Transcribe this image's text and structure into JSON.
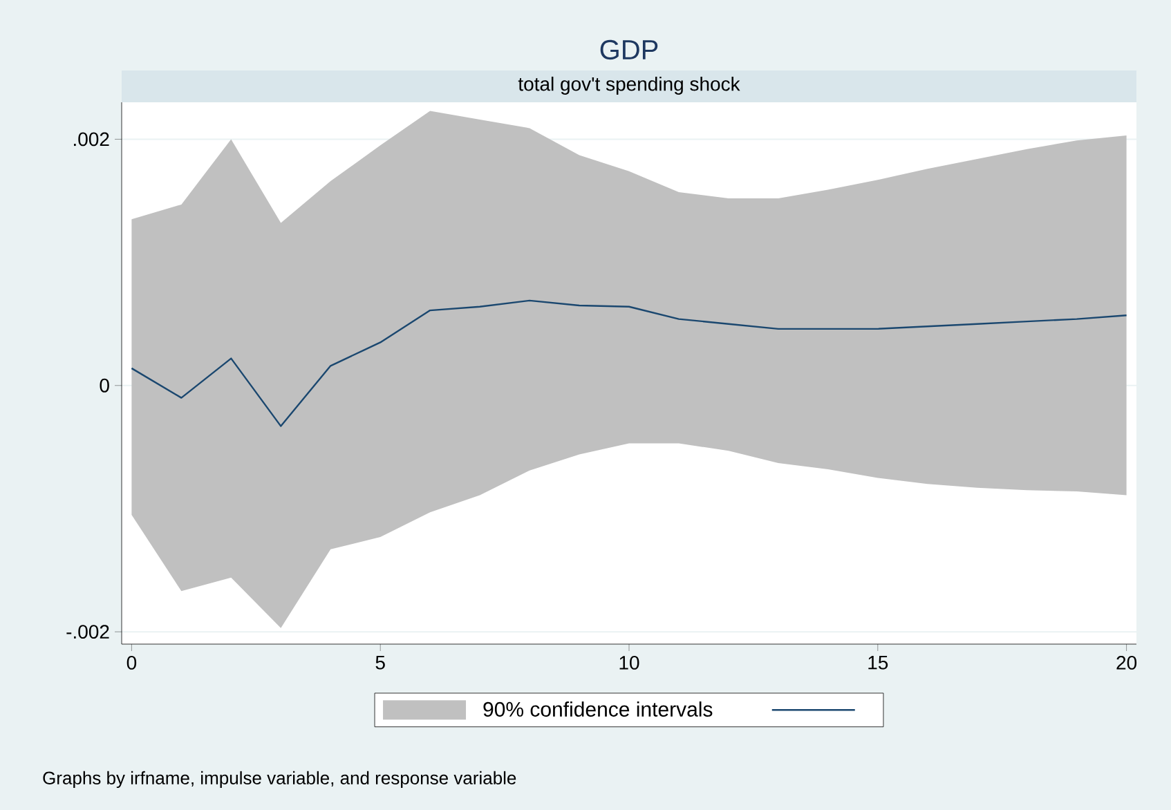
{
  "chart_data": {
    "type": "line",
    "title": "GDP",
    "subtitle": "total gov't spending shock",
    "annotations": [
      "Graphs by irfname, impulse variable, and response variable"
    ],
    "x": [
      0,
      1,
      2,
      3,
      4,
      5,
      6,
      7,
      8,
      9,
      10,
      11,
      12,
      13,
      14,
      15,
      16,
      17,
      18,
      19,
      20
    ],
    "series": [
      {
        "name": "90% confidence intervals",
        "color": "#1a476f",
        "values": [
          0.00014,
          -0.0001,
          0.00022,
          -0.00033,
          0.00016,
          0.00035,
          0.00061,
          0.00064,
          0.00069,
          0.00065,
          0.00064,
          0.00054,
          0.0005,
          0.00046,
          0.00046,
          0.00046,
          0.00048,
          0.0005,
          0.00052,
          0.00054,
          0.00057
        ],
        "lower": [
          -0.00105,
          -0.00167,
          -0.00156,
          -0.00197,
          -0.00133,
          -0.00123,
          -0.00103,
          -0.00089,
          -0.00069,
          -0.00056,
          -0.00047,
          -0.00047,
          -0.00053,
          -0.00063,
          -0.00068,
          -0.00075,
          -0.0008,
          -0.00083,
          -0.00085,
          -0.00086,
          -0.00089
        ],
        "upper": [
          0.00135,
          0.00147,
          0.002,
          0.00132,
          0.00166,
          0.00195,
          0.00223,
          0.00216,
          0.00209,
          0.00187,
          0.00174,
          0.00157,
          0.00152,
          0.00152,
          0.00159,
          0.00167,
          0.00176,
          0.00184,
          0.00192,
          0.00199,
          0.00203
        ]
      }
    ],
    "xlim": [
      -0.2,
      20.2
    ],
    "ylim": [
      -0.0021,
      0.0023
    ],
    "xticks": [
      0,
      5,
      10,
      15,
      20
    ],
    "yticks": [
      {
        "value": -0.002,
        "label": "-.002"
      },
      {
        "value": 0,
        "label": "0"
      },
      {
        "value": 0.002,
        "label": ".002"
      }
    ],
    "grid": "y",
    "legend": "bottom",
    "line_style": "solid",
    "marker": "none"
  }
}
